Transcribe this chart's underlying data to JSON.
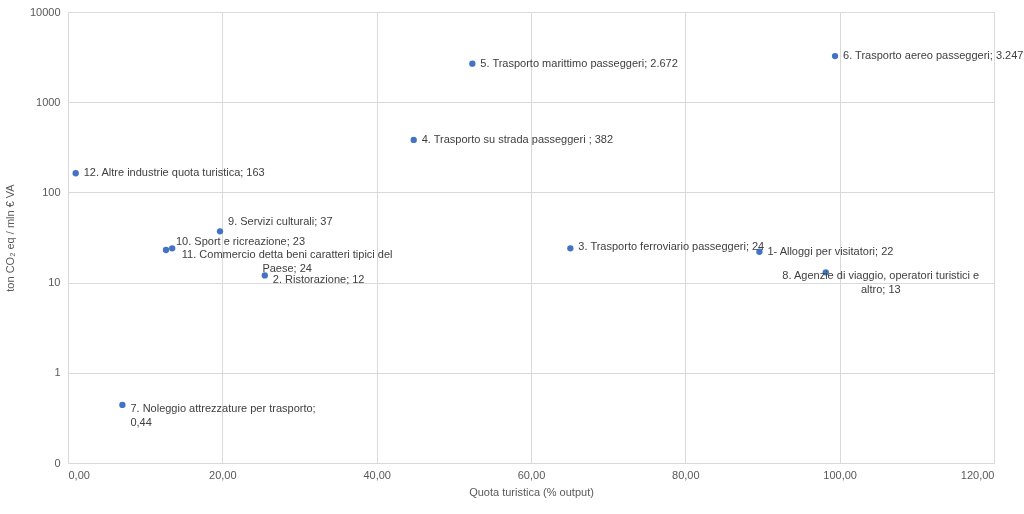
{
  "chart_data": {
    "type": "scatter",
    "xlabel": "Quota turistica (% output)",
    "ylabel": "ton CO₂ eq / mln € VA",
    "x": [
      89.6,
      25.5,
      65.1,
      44.8,
      52.4,
      99.4,
      7.05,
      98.2,
      19.7,
      12.7,
      13.5,
      1.0
    ],
    "series": [
      {
        "color": "#4472c4",
        "values": [
          22,
          12,
          24,
          382,
          2672,
          3247,
          0.44,
          13,
          37,
          23,
          24,
          163
        ]
      }
    ],
    "xlim": [
      0,
      120
    ],
    "xticks": [
      {
        "value": 0,
        "label": "0,00"
      },
      {
        "value": 20,
        "label": "20,00"
      },
      {
        "value": 40,
        "label": "40,00"
      },
      {
        "value": 60,
        "label": "60,00"
      },
      {
        "value": 80,
        "label": "80,00"
      },
      {
        "value": 100,
        "label": "100,00"
      },
      {
        "value": 120,
        "label": "120,00"
      }
    ],
    "ylim": [
      0.1,
      10000
    ],
    "yticks": [
      {
        "value": 0.1,
        "label": "0"
      },
      1,
      10,
      100,
      1000,
      10000
    ],
    "log": "y",
    "grid": true,
    "marker": "circle",
    "annotations": [
      {
        "text": "1- Alloggi per visitatori;  22",
        "x": 89.6,
        "y": 22
      },
      {
        "text": "2. Ristorazione;  12",
        "x": 25.5,
        "y": 12
      },
      {
        "text": "3. Trasporto  ferroviario passeggeri;  24",
        "x": 65.1,
        "y": 24
      },
      {
        "text": "4. Trasporto su strada passeggeri ;  382",
        "x": 44.8,
        "y": 382
      },
      {
        "text": "5. Trasporto marittimo passeggeri;  2.672",
        "x": 52.4,
        "y": 2672
      },
      {
        "text": "6. Trasporto aereo passeggeri;  3.247",
        "x": 99.4,
        "y": 3247
      },
      {
        "text": "7. Noleggio attrezzature per trasporto; 0,44",
        "x": 7.05,
        "y": 0.44
      },
      {
        "text": "8. Agenzie di viaggio, operatori turistici e altro;  13",
        "x": 98.2,
        "y": 13
      },
      {
        "text": "9. Servizi culturali;  37",
        "x": 19.7,
        "y": 37
      },
      {
        "text": "10. Sport e ricreazione;  23",
        "x": 12.7,
        "y": 23
      },
      {
        "text": "11. Commercio  detta beni caratteri tipici del Paese;  24",
        "x": 13.5,
        "y": 24
      },
      {
        "text": "12. Altre industrie quota turistica;  163",
        "x": 1.0,
        "y": 163
      }
    ]
  }
}
